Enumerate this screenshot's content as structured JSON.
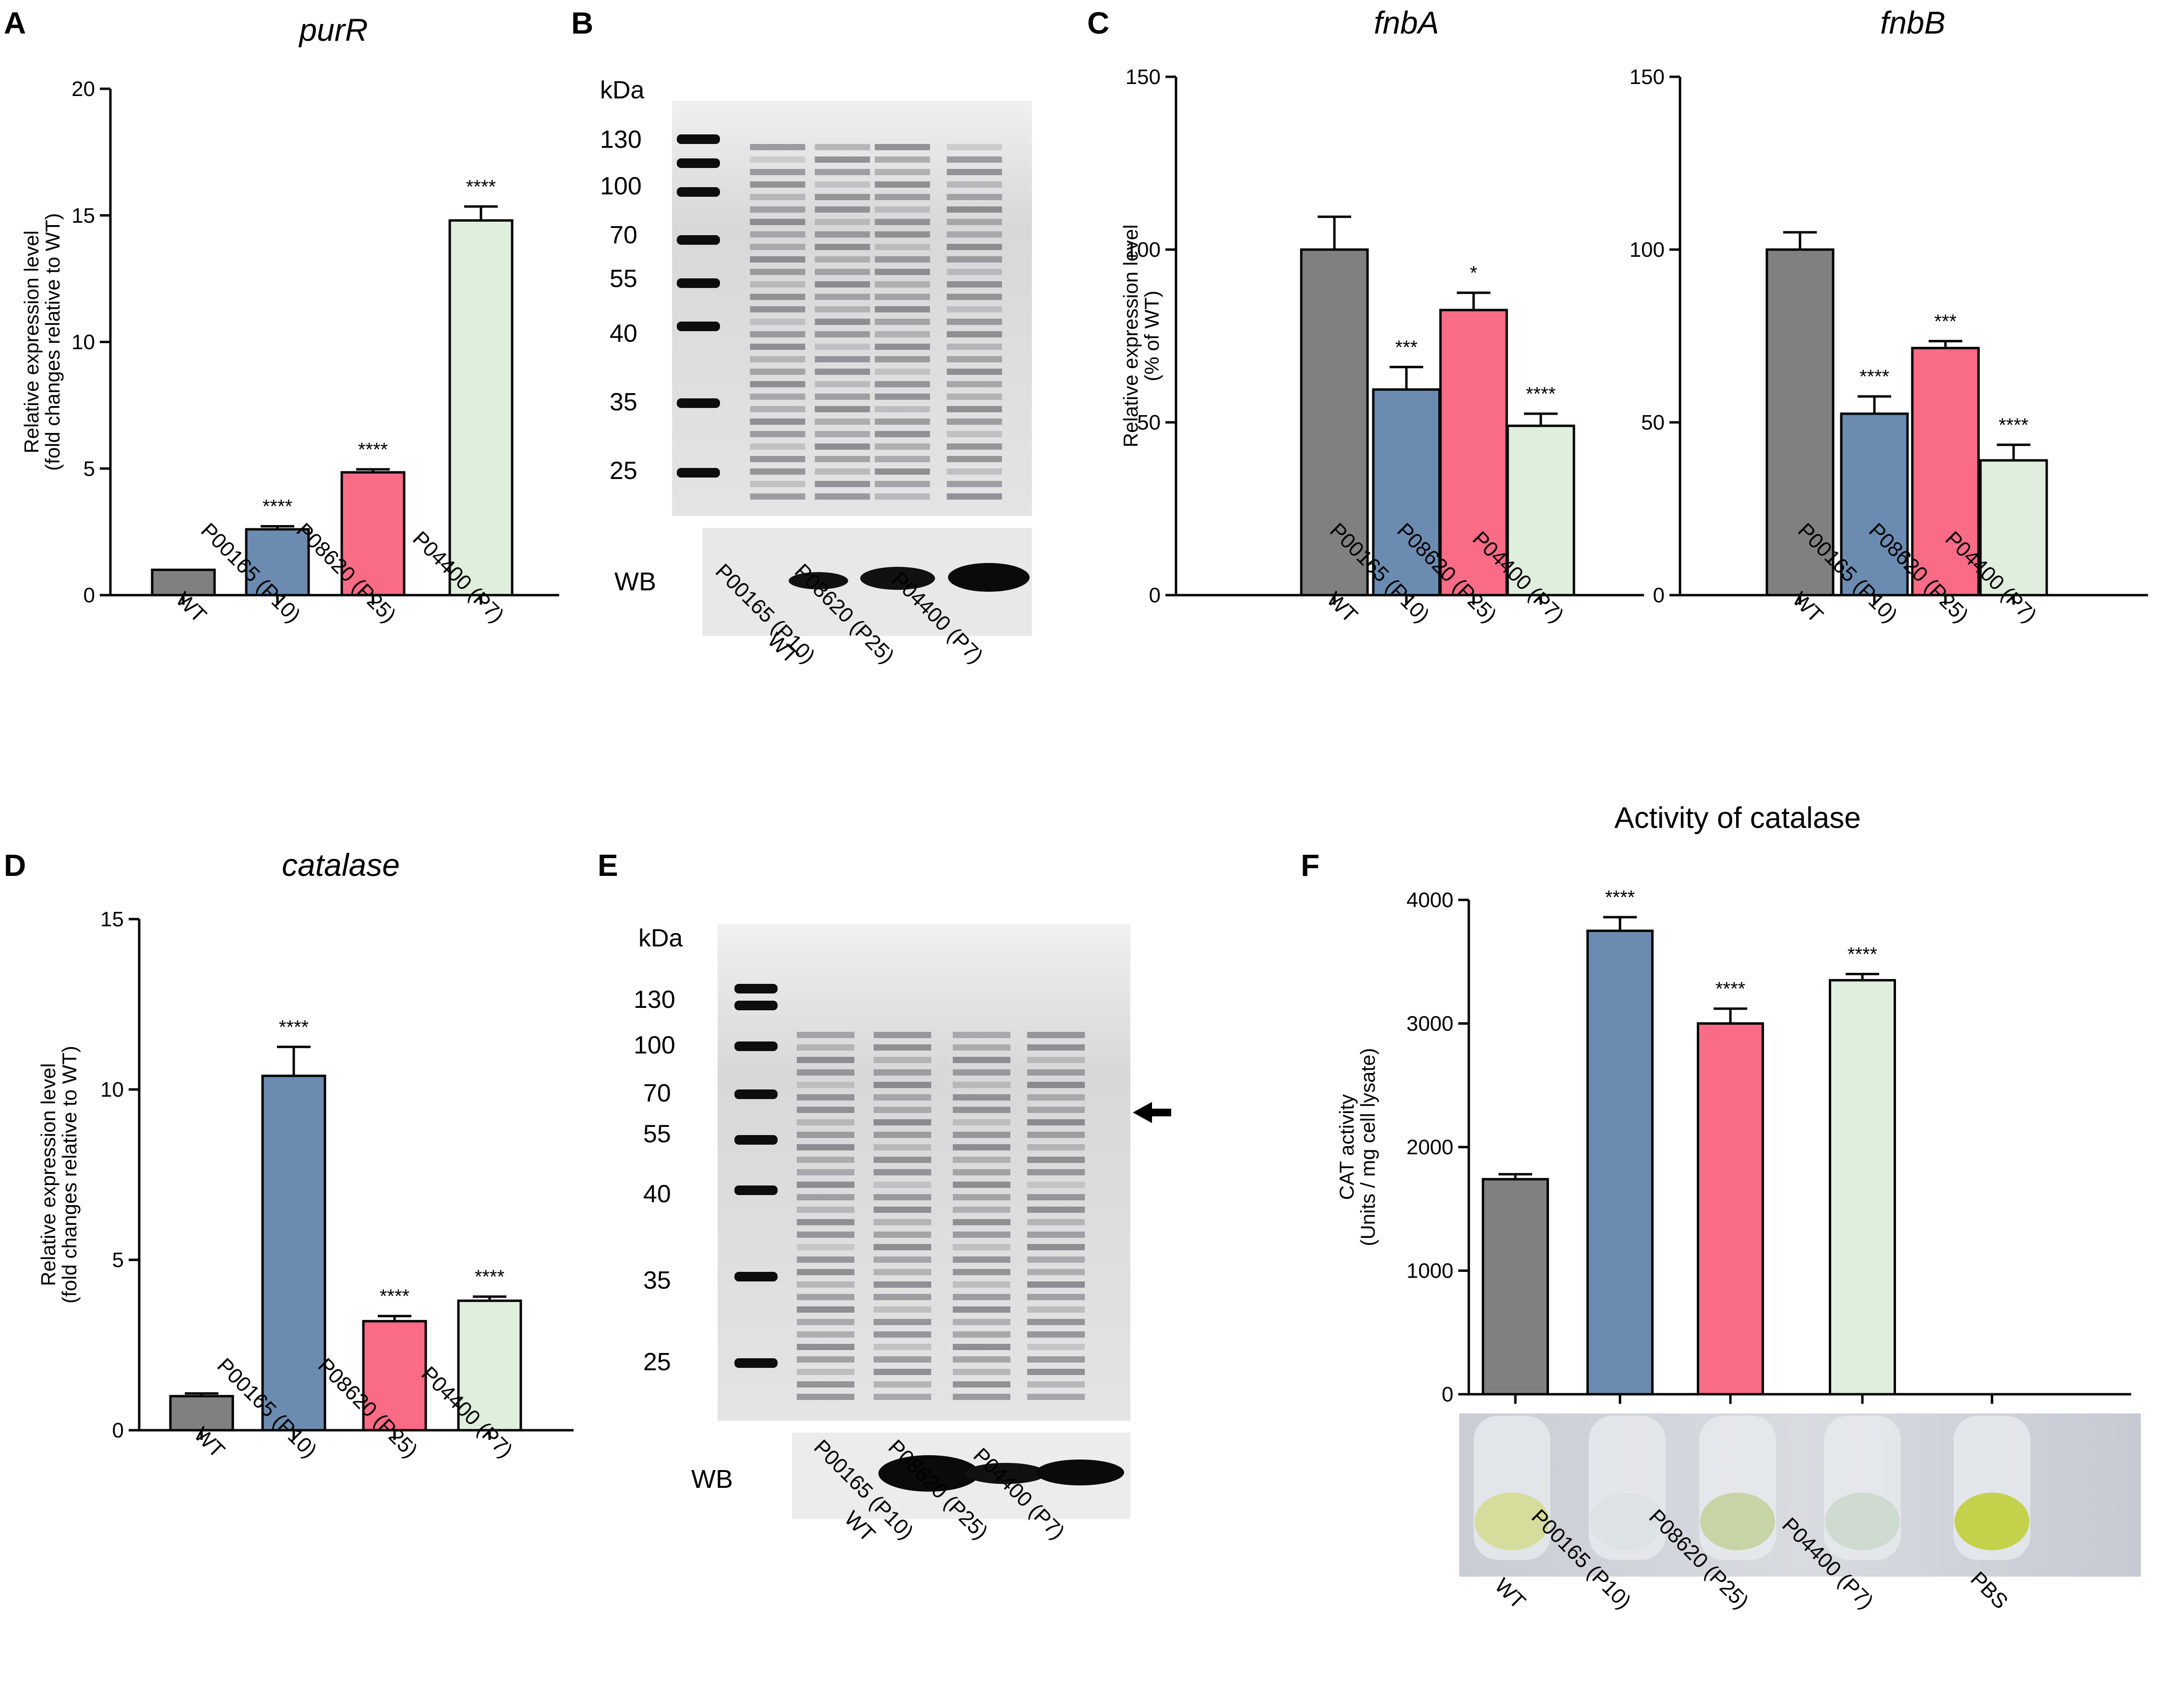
{
  "panels": {
    "A": "A",
    "B": "B",
    "C": "C",
    "D": "D",
    "E": "E",
    "F": "F"
  },
  "gel_B": {
    "unit_label": "kDa",
    "markers": [
      "130",
      "100",
      "70",
      "55",
      "40",
      "35",
      "25"
    ],
    "wb_label": "WB",
    "lanes": [
      "WT",
      "P00165 (P10)",
      "P08620 (P25)",
      "P04400 (P7)"
    ]
  },
  "gel_E": {
    "unit_label": "kDa",
    "markers": [
      "130",
      "100",
      "70",
      "55",
      "40",
      "35",
      "25"
    ],
    "wb_label": "WB",
    "lanes": [
      "WT",
      "P00165 (P10)",
      "P08620 (P25)",
      "P04400 (P7)"
    ]
  },
  "photo_F": {
    "lanes": [
      "WT",
      "P00165 (P10)",
      "P08620 (P25)",
      "P04400 (P7)",
      "PBS"
    ]
  },
  "colors": {
    "WT": "#808080",
    "P10": "#6b8cb0",
    "P25": "#fa6b86",
    "P7": "#dfeedd"
  },
  "chart_data": [
    {
      "id": "A",
      "type": "bar",
      "title": "purR",
      "ylabel": "Relative expression level (fold changes relative to WT)",
      "ylim": [
        0,
        20
      ],
      "yticks": [
        "0",
        "5",
        "10",
        "15",
        "20"
      ],
      "categories": [
        "WT",
        "P00165 (P10)",
        "P08620 (P25)",
        "P04400 (P7)"
      ],
      "values": [
        1.0,
        2.6,
        4.85,
        14.8
      ],
      "errors": [
        0,
        0.12,
        0.12,
        0.55
      ],
      "significance": [
        "",
        "****",
        "****",
        "****"
      ]
    },
    {
      "id": "C1",
      "type": "bar",
      "title": "fnbA",
      "ylabel": "Relative expression level (% of WT)",
      "ylim": [
        0,
        150
      ],
      "yticks": [
        "0",
        "50",
        "100",
        "150"
      ],
      "categories": [
        "WT",
        "P00165 (P10)",
        "P08620 (P25)",
        "P04400 (P7)"
      ],
      "values": [
        100,
        59.5,
        82.5,
        49
      ],
      "errors": [
        9.5,
        6.5,
        5,
        3.5
      ],
      "significance": [
        "",
        "***",
        "*",
        "****"
      ]
    },
    {
      "id": "C2",
      "type": "bar",
      "title": "fnbB",
      "ylabel": "",
      "ylim": [
        0,
        150
      ],
      "yticks": [
        "0",
        "50",
        "100",
        "150"
      ],
      "categories": [
        "WT",
        "P00165 (P10)",
        "P08620 (P25)",
        "P04400 (P7)"
      ],
      "values": [
        100,
        52.5,
        71.5,
        39
      ],
      "errors": [
        5,
        5,
        2,
        4.5
      ],
      "significance": [
        "",
        "****",
        "***",
        "****"
      ]
    },
    {
      "id": "D",
      "type": "bar",
      "title": "catalase",
      "ylabel": "Relative expression level (fold changes relative to WT)",
      "ylim": [
        0,
        15
      ],
      "yticks": [
        "0",
        "5",
        "10",
        "15"
      ],
      "categories": [
        "WT",
        "P00165 (P10)",
        "P08620 (P25)",
        "P04400 (P7)"
      ],
      "values": [
        1.0,
        10.4,
        3.2,
        3.8
      ],
      "errors": [
        0.08,
        0.85,
        0.15,
        0.12
      ],
      "significance": [
        "",
        "****",
        "****",
        "****"
      ]
    },
    {
      "id": "F",
      "type": "bar",
      "title": "Activity of catalase",
      "ylabel": "CAT activity (Units / mg cell lysate)",
      "ylim": [
        0,
        4000
      ],
      "yticks": [
        "0",
        "1000",
        "2000",
        "3000",
        "4000"
      ],
      "categories": [
        "WT",
        "P00165 (P10)",
        "P08620 (P25)",
        "P04400 (P7)",
        "PBS"
      ],
      "values": [
        1740,
        3750,
        3000,
        3350,
        0
      ],
      "errors": [
        40,
        110,
        120,
        50,
        0
      ],
      "significance": [
        "",
        "****",
        "****",
        "****",
        ""
      ]
    }
  ]
}
